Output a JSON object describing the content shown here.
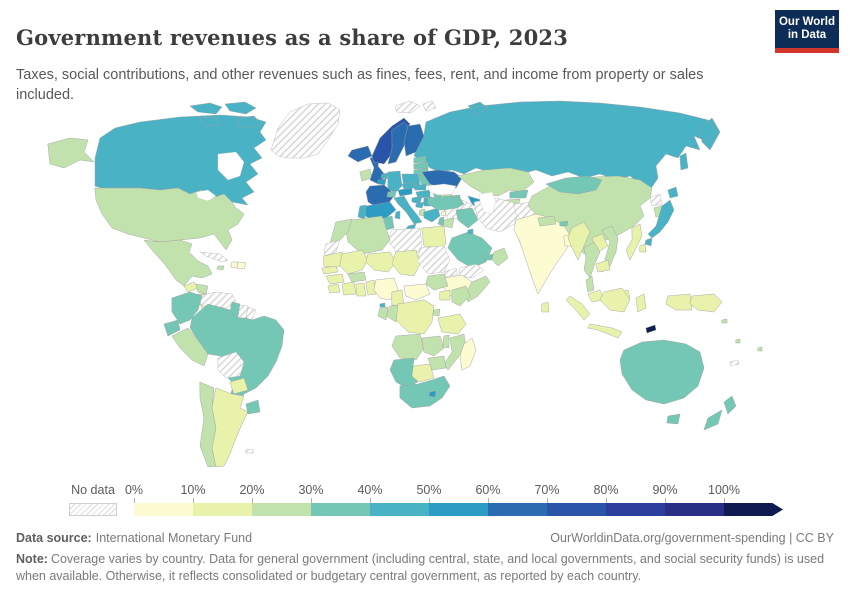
{
  "header": {
    "title": "Government revenues as a share of GDP, 2023",
    "subtitle": "Taxes, social contributions, and other revenues such as fines, fees, rent, and income from property or sales included.",
    "logo": {
      "line1": "Our World",
      "line2": "in Data",
      "bg_color": "#0d2d57",
      "accent_color": "#d2352b"
    }
  },
  "legend": {
    "no_data_label": "No data",
    "tick_labels": [
      "0%",
      "10%",
      "20%",
      "30%",
      "40%",
      "50%",
      "60%",
      "70%",
      "80%",
      "90%",
      "100%"
    ]
  },
  "footer": {
    "data_source_label": "Data source:",
    "data_source": "International Monetary Fund",
    "link": "OurWorldinData.org/government-spending | CC BY",
    "note_label": "Note:",
    "note": "Coverage varies by country. Data for general government (including central, state, and local governments, and social security funds) is used when available. Otherwise, it reflects consolidated or budgetary central government, as reported by each country."
  },
  "chart_data": {
    "type": "choropleth",
    "title": "Government revenues as a share of GDP, 2023",
    "unit": "share of GDP (%)",
    "source": "International Monetary Fund",
    "no_data_label": "No data",
    "bins": [
      {
        "range": "0-10",
        "color": "#fdfbd2"
      },
      {
        "range": "10-20",
        "color": "#e8f2aa"
      },
      {
        "range": "20-30",
        "color": "#c1e2ad"
      },
      {
        "range": "30-40",
        "color": "#74c7b4"
      },
      {
        "range": "40-50",
        "color": "#49b2c5"
      },
      {
        "range": "50-60",
        "color": "#2d9cc5"
      },
      {
        "range": "60-70",
        "color": "#2b6cb1"
      },
      {
        "range": "70-80",
        "color": "#2954a8"
      },
      {
        "range": "80-90",
        "color": "#2c3e9b"
      },
      {
        "range": "90-100",
        "color": "#282f85"
      },
      {
        "range": "100+",
        "color": "#0f1c4f"
      }
    ],
    "countries": {
      "greenland": "no-data",
      "canada": "40-50",
      "usa": "20-30",
      "mexico": "20-30",
      "guatemala": "10-20",
      "honduras": "20-30",
      "nicaragua": "20-30",
      "costa-rica": "10-20",
      "panama": "20-30",
      "cuba": "no-data",
      "jamaica": "20-30",
      "haiti": "0-10",
      "dominican-republic": "0-10",
      "colombia": "30-40",
      "venezuela": "no-data",
      "guyana": "30-40",
      "suriname": "no-data",
      "french-guiana": "no-data",
      "ecuador": "30-40",
      "peru": "20-30",
      "brazil": "30-40",
      "bolivia": "no-data",
      "paraguay": "10-20",
      "chile": "20-30",
      "argentina": "10-20",
      "uruguay": "30-40",
      "falkland-islands": "no-data",
      "iceland": "60-70",
      "ireland": "20-30",
      "uk": "60-70",
      "norway": "70-80",
      "sweden": "60-70",
      "finland": "60-70",
      "denmark": "70-80",
      "estonia": "30-40",
      "latvia": "30-40",
      "lithuania": "30-40",
      "belarus": "30-40",
      "poland": "40-50",
      "germany": "40-50",
      "netherlands": "40-50",
      "belgium": "50-60",
      "france": "60-70",
      "spain": "50-60",
      "portugal": "40-50",
      "switzerland": "30-40",
      "austria": "50-60",
      "czechia": "40-50",
      "slovakia": "40-50",
      "hungary": "40-50",
      "italy": "40-50",
      "croatia": "40-50",
      "bosnia": "40-50",
      "serbia": "40-50",
      "albania": "20-30",
      "greece": "40-50",
      "romania": "30-40",
      "bulgaria": "30-40",
      "moldova": "30-40",
      "ukraine": "60-70",
      "russia": "40-50",
      "svalbard": "no-data",
      "kazakhstan": "20-30",
      "uzbekistan": "50-60",
      "turkmenistan": "no-data",
      "kyrgyzstan": "30-40",
      "tajikistan": "20-30",
      "georgia": "20-30",
      "armenia": "20-30",
      "azerbaijan": "30-40",
      "turkey": "30-40",
      "syria": "no-data",
      "lebanon": "0-10",
      "israel": "30-40",
      "jordan": "20-30",
      "iraq": "30-40",
      "iran": "no-data",
      "afghanistan": "no-data",
      "pakistan": "0-10",
      "saudi-arabia": "30-40",
      "kuwait": "40-50",
      "uae": "30-40",
      "oman": "20-30",
      "yemen": "no-data",
      "egypt": "10-20",
      "libya": "no-data",
      "tunisia": "30-40",
      "algeria": "20-30",
      "morocco": "20-30",
      "western-sahara": "no-data",
      "mauritania": "10-20",
      "mali": "10-20",
      "niger": "10-20",
      "chad": "10-20",
      "sudan": "no-data",
      "eritrea": "no-data",
      "ethiopia": "0-10",
      "somalia": "20-30",
      "senegal": "10-20",
      "guinea": "10-20",
      "sierra-leone": "10-20",
      "ivory-coast": "10-20",
      "ghana": "10-20",
      "burkina-faso": "20-30",
      "benin": "10-20",
      "nigeria": "0-10",
      "cameroon": "10-20",
      "central-african-republic": "0-10",
      "south-sudan": "20-30",
      "uganda": "10-20",
      "kenya": "20-30",
      "drc": "10-20",
      "congo": "20-30",
      "gabon": "20-30",
      "equatorial-guinea": "40-50",
      "rwanda": "20-30",
      "tanzania": "10-20",
      "angola": "20-30",
      "zambia": "20-30",
      "malawi": "20-30",
      "mozambique": "20-30",
      "zimbabwe": "20-30",
      "botswana": "10-20",
      "namibia": "30-40",
      "south-africa": "30-40",
      "lesotho": "50-60",
      "madagascar": "0-10",
      "india": "0-10",
      "sri-lanka": "10-20",
      "nepal": "20-30",
      "bhutan": "30-40",
      "bangladesh": "0-10",
      "china": "20-30",
      "mongolia": "30-40",
      "north-korea": "no-data",
      "south-korea": "20-30",
      "japan": "40-50",
      "taiwan": "10-20",
      "myanmar": "10-20",
      "thailand": "20-30",
      "laos": "10-20",
      "vietnam": "20-30",
      "cambodia": "10-20",
      "malaysia": "10-20",
      "philippines": "10-20",
      "indonesia": "10-20",
      "timor-leste": "100+",
      "papua-new-guinea": "10-20",
      "solomon-islands": "20-30",
      "vanuatu": "20-30",
      "fiji": "20-30",
      "new-caledonia": "no-data",
      "australia": "30-40",
      "new-zealand": "30-40"
    }
  }
}
